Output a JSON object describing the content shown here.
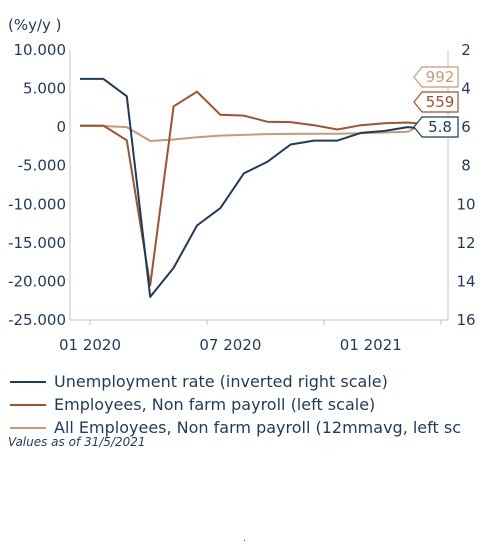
{
  "chart_data": {
    "type": "line",
    "left_axis": {
      "unit_label": "(%y/y )",
      "ticks": [
        "10.000",
        "5.000",
        "0",
        "-5.000",
        "-10.000",
        "-15.000",
        "-20.000",
        "-25.000"
      ],
      "ylim": [
        -25000,
        10000
      ]
    },
    "right_axis": {
      "ticks": [
        "2",
        "4",
        "6",
        "8",
        "10",
        "12",
        "14",
        "16"
      ],
      "ylim": [
        2,
        16
      ],
      "inverted": true
    },
    "x_ticks": [
      "01 2020",
      "07 2020",
      "01 2021"
    ],
    "x": [
      "2020-01",
      "2020-02",
      "2020-03",
      "2020-04",
      "2020-05",
      "2020-06",
      "2020-07",
      "2020-08",
      "2020-09",
      "2020-10",
      "2020-11",
      "2020-12",
      "2021-01",
      "2021-02",
      "2021-03",
      "2021-04",
      "2021-05"
    ],
    "series": [
      {
        "name": "Unemployment rate (inverted right scale)",
        "axis": "right",
        "color": "#1f3a5f",
        "values": [
          3.5,
          3.5,
          4.4,
          14.8,
          13.3,
          11.1,
          10.2,
          8.4,
          7.8,
          6.9,
          6.7,
          6.7,
          6.3,
          6.2,
          6.0,
          6.1,
          5.8
        ]
      },
      {
        "name": "Employees, Non farm payroll (left scale)",
        "axis": "left",
        "color": "#a0522d",
        "values": [
          200,
          200,
          -1700,
          -20500,
          2700,
          4600,
          1600,
          1500,
          700,
          650,
          250,
          -300,
          250,
          500,
          600,
          300,
          559
        ]
      },
      {
        "name": "All Employees, Non farm payroll (12mmavg, left sc",
        "axis": "left",
        "color": "#c99a73",
        "values": [
          150,
          150,
          0,
          -1800,
          -1600,
          -1300,
          -1100,
          -1000,
          -900,
          -880,
          -860,
          -850,
          -800,
          -700,
          -600,
          950,
          992
        ]
      }
    ],
    "end_labels": [
      {
        "text": "992",
        "color": "#c99a73"
      },
      {
        "text": "559",
        "color": "#a0522d"
      },
      {
        "text": "5.8",
        "color": "#1f3a5f"
      }
    ]
  },
  "note": "Values as of 31/5/2021",
  "footer_mark": "."
}
